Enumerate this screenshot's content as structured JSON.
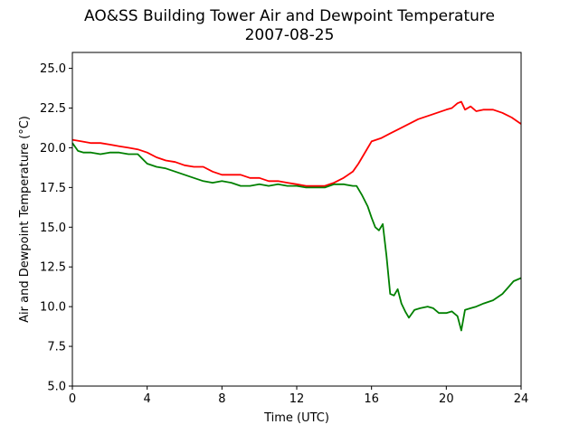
{
  "chart_data": {
    "type": "line",
    "title": "AO&SS Building Tower Air and Dewpoint Temperature",
    "subtitle": "2007-08-25",
    "xlabel": "Time (UTC)",
    "ylabel": "Air and Dewpoint Temperature (°C)",
    "xlim": [
      0,
      24
    ],
    "ylim": [
      5.0,
      26.0
    ],
    "xticks": [
      0,
      4,
      8,
      12,
      16,
      20,
      24
    ],
    "yticks": [
      "5.0",
      "7.5",
      "10.0",
      "12.5",
      "15.0",
      "17.5",
      "20.0",
      "22.5",
      "25.0"
    ],
    "grid": false,
    "series": [
      {
        "color": "#ff0000",
        "x": [
          0,
          0.5,
          1,
          1.5,
          2,
          2.5,
          3,
          3.5,
          4,
          4.5,
          5,
          5.5,
          6,
          6.5,
          7,
          7.5,
          8,
          8.5,
          9,
          9.5,
          10,
          10.5,
          11,
          11.5,
          12,
          12.5,
          13,
          13.5,
          14,
          14.5,
          15,
          15.3,
          15.6,
          16,
          16.5,
          17,
          17.5,
          18,
          18.5,
          19,
          19.5,
          20,
          20.3,
          20.6,
          20.8,
          21,
          21.3,
          21.6,
          22,
          22.5,
          23,
          23.5,
          24
        ],
        "y": [
          20.5,
          20.4,
          20.3,
          20.3,
          20.2,
          20.1,
          20.0,
          19.9,
          19.7,
          19.4,
          19.2,
          19.1,
          18.9,
          18.8,
          18.8,
          18.5,
          18.3,
          18.3,
          18.3,
          18.1,
          18.1,
          17.9,
          17.9,
          17.8,
          17.7,
          17.6,
          17.6,
          17.6,
          17.8,
          18.1,
          18.5,
          19.0,
          19.6,
          20.4,
          20.6,
          20.9,
          21.2,
          21.5,
          21.8,
          22.0,
          22.2,
          22.4,
          22.5,
          22.8,
          22.9,
          22.4,
          22.6,
          22.3,
          22.4,
          22.4,
          22.2,
          21.9,
          21.5
        ]
      },
      {
        "color": "#008000",
        "x": [
          0,
          0.3,
          0.6,
          1,
          1.5,
          2,
          2.5,
          3,
          3.5,
          4,
          4.5,
          5,
          5.5,
          6,
          6.5,
          7,
          7.5,
          8,
          8.5,
          9,
          9.5,
          10,
          10.5,
          11,
          11.5,
          12,
          12.5,
          13,
          13.5,
          14,
          14.5,
          15,
          15.2,
          15.5,
          15.8,
          16,
          16.2,
          16.4,
          16.6,
          16.8,
          17,
          17.2,
          17.4,
          17.6,
          17.8,
          18,
          18.3,
          18.6,
          19,
          19.3,
          19.6,
          20,
          20.3,
          20.6,
          20.8,
          21,
          21.3,
          21.6,
          22,
          22.5,
          23,
          23.3,
          23.6,
          24
        ],
        "y": [
          20.3,
          19.8,
          19.7,
          19.7,
          19.6,
          19.7,
          19.7,
          19.6,
          19.6,
          19.0,
          18.8,
          18.7,
          18.5,
          18.3,
          18.1,
          17.9,
          17.8,
          17.9,
          17.8,
          17.6,
          17.6,
          17.7,
          17.6,
          17.7,
          17.6,
          17.6,
          17.5,
          17.5,
          17.5,
          17.7,
          17.7,
          17.6,
          17.6,
          17.0,
          16.3,
          15.6,
          15.0,
          14.8,
          15.2,
          13.2,
          10.8,
          10.7,
          11.1,
          10.2,
          9.7,
          9.3,
          9.8,
          9.9,
          10.0,
          9.9,
          9.6,
          9.6,
          9.7,
          9.4,
          8.5,
          9.8,
          9.9,
          10.0,
          10.2,
          10.4,
          10.8,
          11.2,
          11.6,
          11.8
        ]
      }
    ]
  }
}
